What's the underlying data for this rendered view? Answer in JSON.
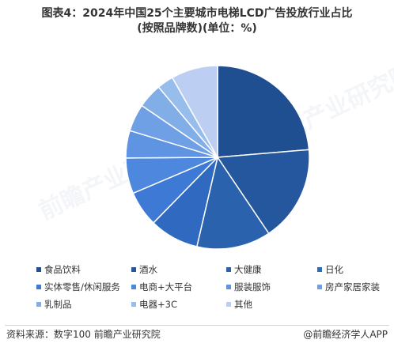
{
  "title_line1": "图表4：2024年中国25个主要城市电梯LCD广告投放行业占比",
  "title_line2": "(按照品牌数)(单位：%)",
  "chart_data": {
    "type": "pie",
    "title": "图表4：2024年中国25个主要城市电梯LCD广告投放行业占比(按照品牌数)(单位：%)",
    "categories": [
      "食品饮料",
      "酒水",
      "大健康",
      "日化",
      "实体零售/休闲服务",
      "电商+大平台",
      "服装服饰",
      "房产家居家装",
      "乳制品",
      "电器+3C",
      "其他"
    ],
    "values": [
      24.5,
      17.5,
      13.5,
      9.0,
      6.5,
      6.5,
      5.0,
      5.0,
      4.5,
      3.0,
      8.5
    ],
    "colors": [
      "#1f4e91",
      "#24579e",
      "#2a62ad",
      "#2f6ac0",
      "#3e7ad5",
      "#4d87de",
      "#5f94e2",
      "#6f9fe5",
      "#82aee8",
      "#97bded",
      "#bccff3"
    ]
  },
  "legend_colors": {
    "食品饮料": "#1f4e91",
    "酒水": "#24579e",
    "大健康": "#2a62ad",
    "日化": "#2f6ac0",
    "实体零售/休闲服务": "#3e7ad5",
    "电商+大平台": "#4d87de",
    "服装服饰": "#5f94e2",
    "房产家居家装": "#6f9fe5",
    "乳制品": "#82aee8",
    "电器+3C": "#97bded",
    "其他": "#bccff3"
  },
  "footer": {
    "source": "资料来源：数字100 前瞻产业研究院",
    "brand": "@前瞻经济学人APP"
  },
  "watermark": "前瞻产业研究院"
}
